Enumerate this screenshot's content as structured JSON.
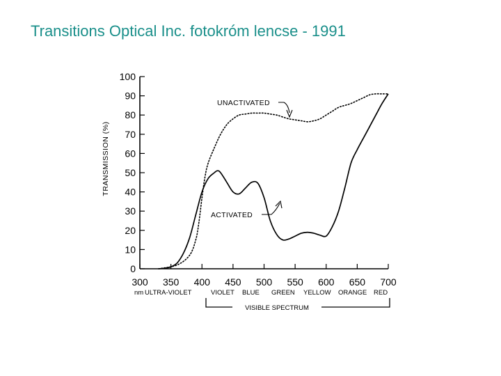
{
  "page": {
    "title": "Transitions Optical Inc.  fotokróm lencse - 1991"
  },
  "chart_data": {
    "type": "line",
    "title": "",
    "ylabel": "TRANSMISSION (%)",
    "xlabel": "",
    "xlim": [
      300,
      700
    ],
    "ylim": [
      0,
      100
    ],
    "x_ticks": [
      300,
      350,
      400,
      450,
      500,
      550,
      600,
      650,
      700
    ],
    "y_ticks": [
      0,
      10,
      20,
      30,
      40,
      50,
      60,
      70,
      80,
      90,
      100
    ],
    "x_unit_label": "nm",
    "spectrum_regions": [
      "ULTRA-VIOLET",
      "VIOLET",
      "BLUE",
      "GREEN",
      "YELLOW",
      "ORANGE",
      "RED"
    ],
    "bracket_label": "VISIBLE SPECTRUM",
    "series": [
      {
        "name": "UNACTIVATED",
        "style": "dotted",
        "x": [
          330,
          360,
          380,
          390,
          395,
          400,
          405,
          410,
          420,
          430,
          440,
          450,
          460,
          470,
          480,
          490,
          500,
          510,
          520,
          530,
          540,
          550,
          560,
          570,
          580,
          590,
          600,
          610,
          620,
          630,
          640,
          650,
          660,
          670,
          680,
          690,
          700
        ],
        "y": [
          0,
          2,
          7,
          15,
          24,
          37,
          48,
          55,
          63,
          70,
          75,
          78,
          80,
          80.5,
          81,
          81,
          81,
          80.5,
          80,
          79,
          78,
          77.5,
          77,
          76.5,
          77,
          78,
          80,
          82,
          84,
          85,
          86,
          87.5,
          89,
          90.5,
          91,
          91,
          91
        ]
      },
      {
        "name": "ACTIVATED",
        "style": "solid",
        "x": [
          330,
          340,
          350,
          360,
          370,
          380,
          390,
          400,
          410,
          420,
          425,
          430,
          440,
          450,
          460,
          470,
          480,
          490,
          500,
          510,
          520,
          530,
          540,
          550,
          560,
          570,
          580,
          590,
          600,
          610,
          620,
          630,
          640,
          650,
          660,
          670,
          680,
          690,
          700
        ],
        "y": [
          0,
          0.3,
          1,
          3,
          8,
          16,
          28,
          40,
          47,
          50,
          51,
          50,
          45,
          40,
          39,
          42,
          45,
          44.5,
          37,
          25,
          18,
          15,
          15.5,
          17,
          18.5,
          19,
          18.5,
          17.5,
          17,
          22,
          30,
          42,
          55,
          62,
          68,
          74,
          80,
          86,
          91
        ]
      }
    ],
    "annotations": [
      {
        "text": "UNACTIVATED",
        "series": "UNACTIVATED"
      },
      {
        "text": "ACTIVATED",
        "series": "ACTIVATED"
      }
    ],
    "grid": false
  }
}
